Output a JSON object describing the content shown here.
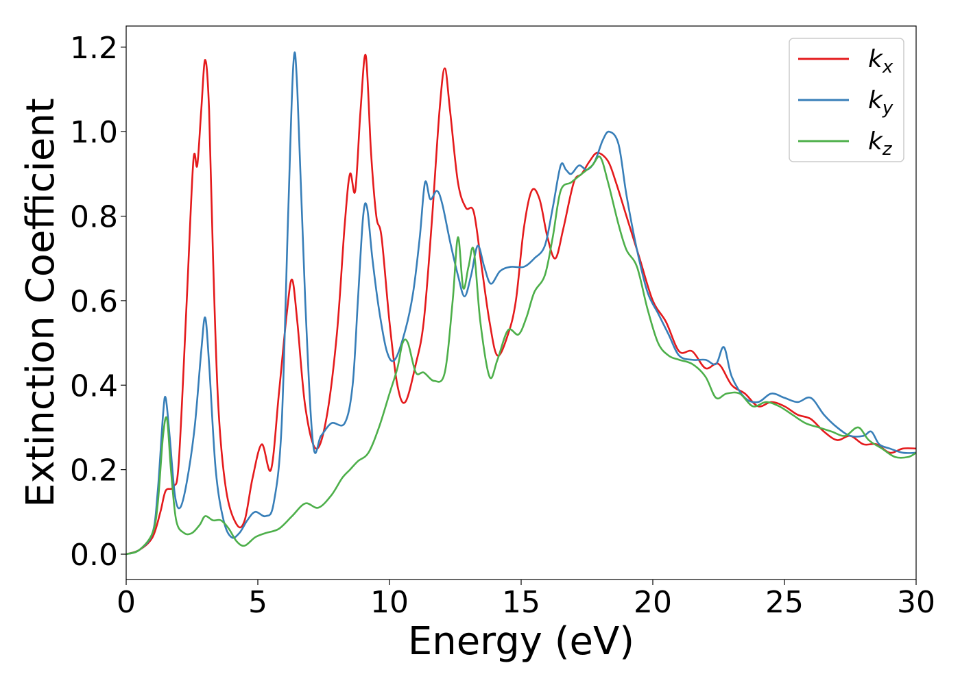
{
  "chart_data": {
    "type": "line",
    "xlabel": "Energy (eV)",
    "ylabel": "Extinction Coefficient",
    "xlim": [
      0,
      30
    ],
    "ylim": [
      -0.06,
      1.25
    ],
    "xticks": [
      0,
      5,
      10,
      15,
      20,
      25,
      30
    ],
    "xtick_labels": [
      "0",
      "5",
      "10",
      "15",
      "20",
      "25",
      "30"
    ],
    "yticks": [
      0.0,
      0.2,
      0.4,
      0.6,
      0.8,
      1.0,
      1.2
    ],
    "ytick_labels": [
      "0.0",
      "0.2",
      "0.4",
      "0.6",
      "0.8",
      "1.0",
      "1.2"
    ],
    "grid": false,
    "legend_position": "top-right",
    "series": [
      {
        "name": "k_x",
        "label_base": "k",
        "label_sub": "x",
        "color": "#e41a1c",
        "points": [
          [
            0,
            0
          ],
          [
            0.5,
            0.01
          ],
          [
            1.0,
            0.04
          ],
          [
            1.3,
            0.1
          ],
          [
            1.5,
            0.15
          ],
          [
            1.8,
            0.16
          ],
          [
            2.0,
            0.22
          ],
          [
            2.3,
            0.6
          ],
          [
            2.55,
            0.93
          ],
          [
            2.7,
            0.92
          ],
          [
            2.85,
            1.05
          ],
          [
            3.0,
            1.17
          ],
          [
            3.15,
            1.05
          ],
          [
            3.3,
            0.7
          ],
          [
            3.5,
            0.35
          ],
          [
            3.8,
            0.15
          ],
          [
            4.2,
            0.07
          ],
          [
            4.5,
            0.08
          ],
          [
            4.8,
            0.18
          ],
          [
            5.15,
            0.26
          ],
          [
            5.5,
            0.2
          ],
          [
            5.8,
            0.38
          ],
          [
            6.1,
            0.57
          ],
          [
            6.3,
            0.65
          ],
          [
            6.5,
            0.55
          ],
          [
            6.8,
            0.35
          ],
          [
            7.2,
            0.25
          ],
          [
            7.6,
            0.32
          ],
          [
            8.0,
            0.52
          ],
          [
            8.3,
            0.78
          ],
          [
            8.5,
            0.9
          ],
          [
            8.7,
            0.86
          ],
          [
            8.9,
            1.05
          ],
          [
            9.1,
            1.18
          ],
          [
            9.3,
            0.95
          ],
          [
            9.5,
            0.8
          ],
          [
            9.7,
            0.75
          ],
          [
            10.0,
            0.55
          ],
          [
            10.3,
            0.4
          ],
          [
            10.6,
            0.36
          ],
          [
            11.0,
            0.45
          ],
          [
            11.3,
            0.55
          ],
          [
            11.6,
            0.78
          ],
          [
            11.9,
            1.05
          ],
          [
            12.1,
            1.15
          ],
          [
            12.3,
            1.05
          ],
          [
            12.6,
            0.88
          ],
          [
            12.9,
            0.82
          ],
          [
            13.2,
            0.81
          ],
          [
            13.5,
            0.68
          ],
          [
            13.8,
            0.55
          ],
          [
            14.1,
            0.47
          ],
          [
            14.5,
            0.52
          ],
          [
            14.8,
            0.6
          ],
          [
            15.1,
            0.77
          ],
          [
            15.4,
            0.86
          ],
          [
            15.7,
            0.84
          ],
          [
            16.0,
            0.75
          ],
          [
            16.3,
            0.7
          ],
          [
            16.6,
            0.77
          ],
          [
            17.0,
            0.88
          ],
          [
            17.3,
            0.9
          ],
          [
            17.6,
            0.93
          ],
          [
            17.9,
            0.95
          ],
          [
            18.3,
            0.93
          ],
          [
            18.6,
            0.88
          ],
          [
            19.0,
            0.8
          ],
          [
            19.5,
            0.7
          ],
          [
            20.0,
            0.6
          ],
          [
            20.5,
            0.55
          ],
          [
            21.0,
            0.48
          ],
          [
            21.5,
            0.48
          ],
          [
            22.0,
            0.44
          ],
          [
            22.5,
            0.45
          ],
          [
            23.0,
            0.4
          ],
          [
            23.5,
            0.38
          ],
          [
            24.0,
            0.35
          ],
          [
            24.5,
            0.36
          ],
          [
            25.0,
            0.35
          ],
          [
            25.5,
            0.33
          ],
          [
            26.0,
            0.32
          ],
          [
            26.5,
            0.29
          ],
          [
            27.0,
            0.27
          ],
          [
            27.5,
            0.28
          ],
          [
            28.0,
            0.26
          ],
          [
            28.5,
            0.26
          ],
          [
            29.0,
            0.24
          ],
          [
            29.5,
            0.25
          ],
          [
            30.0,
            0.25
          ]
        ]
      },
      {
        "name": "k_y",
        "label_base": "k",
        "label_sub": "y",
        "color": "#377eb8",
        "points": [
          [
            0,
            0
          ],
          [
            0.5,
            0.01
          ],
          [
            1.0,
            0.05
          ],
          [
            1.2,
            0.15
          ],
          [
            1.4,
            0.33
          ],
          [
            1.5,
            0.37
          ],
          [
            1.65,
            0.28
          ],
          [
            1.85,
            0.14
          ],
          [
            2.05,
            0.11
          ],
          [
            2.3,
            0.17
          ],
          [
            2.6,
            0.3
          ],
          [
            2.85,
            0.48
          ],
          [
            3.0,
            0.56
          ],
          [
            3.15,
            0.45
          ],
          [
            3.4,
            0.2
          ],
          [
            3.7,
            0.08
          ],
          [
            4.0,
            0.04
          ],
          [
            4.3,
            0.05
          ],
          [
            4.6,
            0.08
          ],
          [
            4.9,
            0.1
          ],
          [
            5.3,
            0.09
          ],
          [
            5.6,
            0.12
          ],
          [
            5.9,
            0.3
          ],
          [
            6.15,
            0.8
          ],
          [
            6.35,
            1.16
          ],
          [
            6.5,
            1.1
          ],
          [
            6.8,
            0.6
          ],
          [
            7.1,
            0.26
          ],
          [
            7.4,
            0.28
          ],
          [
            7.8,
            0.31
          ],
          [
            8.3,
            0.31
          ],
          [
            8.6,
            0.4
          ],
          [
            8.8,
            0.6
          ],
          [
            9.0,
            0.8
          ],
          [
            9.15,
            0.82
          ],
          [
            9.35,
            0.7
          ],
          [
            9.6,
            0.58
          ],
          [
            9.9,
            0.48
          ],
          [
            10.2,
            0.46
          ],
          [
            10.6,
            0.53
          ],
          [
            10.9,
            0.62
          ],
          [
            11.15,
            0.75
          ],
          [
            11.35,
            0.88
          ],
          [
            11.55,
            0.84
          ],
          [
            11.8,
            0.86
          ],
          [
            12.0,
            0.83
          ],
          [
            12.3,
            0.74
          ],
          [
            12.6,
            0.66
          ],
          [
            12.85,
            0.61
          ],
          [
            13.1,
            0.66
          ],
          [
            13.35,
            0.73
          ],
          [
            13.6,
            0.68
          ],
          [
            13.85,
            0.64
          ],
          [
            14.2,
            0.67
          ],
          [
            14.6,
            0.68
          ],
          [
            15.1,
            0.68
          ],
          [
            15.5,
            0.7
          ],
          [
            15.9,
            0.73
          ],
          [
            16.2,
            0.82
          ],
          [
            16.5,
            0.92
          ],
          [
            16.7,
            0.91
          ],
          [
            16.9,
            0.9
          ],
          [
            17.2,
            0.92
          ],
          [
            17.5,
            0.91
          ],
          [
            17.8,
            0.93
          ],
          [
            18.1,
            0.98
          ],
          [
            18.35,
            1.0
          ],
          [
            18.7,
            0.97
          ],
          [
            19.0,
            0.85
          ],
          [
            19.4,
            0.72
          ],
          [
            19.8,
            0.62
          ],
          [
            20.2,
            0.57
          ],
          [
            20.6,
            0.52
          ],
          [
            21.0,
            0.47
          ],
          [
            21.5,
            0.46
          ],
          [
            22.0,
            0.46
          ],
          [
            22.4,
            0.45
          ],
          [
            22.7,
            0.49
          ],
          [
            23.0,
            0.42
          ],
          [
            23.5,
            0.37
          ],
          [
            24.0,
            0.36
          ],
          [
            24.5,
            0.38
          ],
          [
            25.0,
            0.37
          ],
          [
            25.5,
            0.36
          ],
          [
            26.0,
            0.37
          ],
          [
            26.5,
            0.33
          ],
          [
            27.0,
            0.3
          ],
          [
            27.5,
            0.28
          ],
          [
            28.0,
            0.28
          ],
          [
            28.3,
            0.29
          ],
          [
            28.6,
            0.26
          ],
          [
            29.0,
            0.25
          ],
          [
            29.5,
            0.24
          ],
          [
            30.0,
            0.24
          ]
        ]
      },
      {
        "name": "k_z",
        "label_base": "k",
        "label_sub": "z",
        "color": "#4daf4a",
        "points": [
          [
            0,
            0
          ],
          [
            0.5,
            0.01
          ],
          [
            1.0,
            0.05
          ],
          [
            1.2,
            0.12
          ],
          [
            1.4,
            0.28
          ],
          [
            1.55,
            0.32
          ],
          [
            1.7,
            0.2
          ],
          [
            1.9,
            0.08
          ],
          [
            2.2,
            0.05
          ],
          [
            2.5,
            0.05
          ],
          [
            2.8,
            0.07
          ],
          [
            3.0,
            0.09
          ],
          [
            3.3,
            0.08
          ],
          [
            3.6,
            0.08
          ],
          [
            3.9,
            0.06
          ],
          [
            4.2,
            0.03
          ],
          [
            4.5,
            0.02
          ],
          [
            4.9,
            0.04
          ],
          [
            5.3,
            0.05
          ],
          [
            5.8,
            0.06
          ],
          [
            6.3,
            0.09
          ],
          [
            6.8,
            0.12
          ],
          [
            7.3,
            0.11
          ],
          [
            7.8,
            0.14
          ],
          [
            8.2,
            0.18
          ],
          [
            8.5,
            0.2
          ],
          [
            8.8,
            0.22
          ],
          [
            9.2,
            0.24
          ],
          [
            9.6,
            0.3
          ],
          [
            10.0,
            0.38
          ],
          [
            10.3,
            0.44
          ],
          [
            10.5,
            0.5
          ],
          [
            10.7,
            0.5
          ],
          [
            11.0,
            0.43
          ],
          [
            11.3,
            0.43
          ],
          [
            11.7,
            0.41
          ],
          [
            12.1,
            0.43
          ],
          [
            12.4,
            0.6
          ],
          [
            12.6,
            0.75
          ],
          [
            12.8,
            0.63
          ],
          [
            13.0,
            0.68
          ],
          [
            13.2,
            0.72
          ],
          [
            13.45,
            0.55
          ],
          [
            13.8,
            0.42
          ],
          [
            14.1,
            0.46
          ],
          [
            14.5,
            0.53
          ],
          [
            14.9,
            0.52
          ],
          [
            15.2,
            0.56
          ],
          [
            15.5,
            0.62
          ],
          [
            15.9,
            0.66
          ],
          [
            16.2,
            0.75
          ],
          [
            16.5,
            0.86
          ],
          [
            16.9,
            0.88
          ],
          [
            17.3,
            0.9
          ],
          [
            17.7,
            0.92
          ],
          [
            18.0,
            0.94
          ],
          [
            18.3,
            0.88
          ],
          [
            18.7,
            0.78
          ],
          [
            19.0,
            0.72
          ],
          [
            19.4,
            0.68
          ],
          [
            19.8,
            0.58
          ],
          [
            20.2,
            0.5
          ],
          [
            20.6,
            0.47
          ],
          [
            21.0,
            0.46
          ],
          [
            21.5,
            0.45
          ],
          [
            22.0,
            0.42
          ],
          [
            22.4,
            0.37
          ],
          [
            22.8,
            0.38
          ],
          [
            23.3,
            0.38
          ],
          [
            23.8,
            0.35
          ],
          [
            24.3,
            0.36
          ],
          [
            24.8,
            0.35
          ],
          [
            25.3,
            0.33
          ],
          [
            25.8,
            0.31
          ],
          [
            26.3,
            0.3
          ],
          [
            26.8,
            0.29
          ],
          [
            27.3,
            0.28
          ],
          [
            27.8,
            0.3
          ],
          [
            28.2,
            0.27
          ],
          [
            28.7,
            0.25
          ],
          [
            29.2,
            0.23
          ],
          [
            29.7,
            0.23
          ],
          [
            30.0,
            0.24
          ]
        ]
      }
    ]
  }
}
